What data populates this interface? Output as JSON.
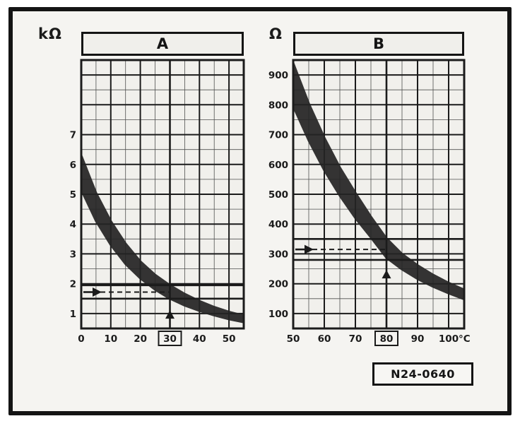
{
  "figure_label": "N24-0640",
  "panels": {
    "a": {
      "title": "A",
      "unit": "kΩ"
    },
    "b": {
      "title": "B",
      "unit": "Ω"
    }
  },
  "colors": {
    "ink": "#1b1b1b",
    "grid_minor": "#4f4f4f",
    "grid_major": "#1b1b1b",
    "band": "#242424",
    "paper": "#f5f4f1",
    "plot_bg": "#f1f0ec"
  },
  "chart_data": [
    {
      "type": "area",
      "title": "A",
      "ylabel": "kΩ",
      "xlabel": "°C",
      "x_unit": "",
      "xlim": [
        0,
        55
      ],
      "ylim": [
        0.5,
        9.5
      ],
      "x_ticks": [
        0,
        10,
        20,
        30,
        40,
        50
      ],
      "y_ticks": [
        1,
        2,
        3,
        4,
        5,
        6,
        7
      ],
      "x_minor_step": 5,
      "y_minor_step": 0.5,
      "x_major_step": 10,
      "y_major_step": 1,
      "grid": true,
      "x": [
        0,
        5,
        10,
        15,
        20,
        25,
        30,
        35,
        40,
        45,
        50,
        55
      ],
      "series": [
        {
          "name": "tolerance-band-upper-kohm",
          "values": [
            6.3,
            5.05,
            4.1,
            3.35,
            2.75,
            2.3,
            1.95,
            1.66,
            1.42,
            1.22,
            1.06,
            0.93
          ]
        },
        {
          "name": "tolerance-band-lower-kohm",
          "values": [
            5.15,
            4.1,
            3.3,
            2.66,
            2.18,
            1.8,
            1.5,
            1.27,
            1.09,
            0.94,
            0.81,
            0.71
          ]
        }
      ],
      "markers": {
        "h_lines": [
          1.5,
          1.95
        ],
        "arrow_y": 1.72,
        "v_line_x": 30,
        "up_arrow_y": 0.9,
        "boxed_x_tick": 30,
        "dashed_guide": true
      }
    },
    {
      "type": "area",
      "title": "B",
      "ylabel": "Ω",
      "xlabel": "°C",
      "x_unit": "°C",
      "xlim": [
        50,
        105
      ],
      "ylim": [
        50,
        950
      ],
      "x_ticks": [
        50,
        60,
        70,
        80,
        90,
        100
      ],
      "y_ticks": [
        100,
        200,
        300,
        400,
        500,
        600,
        700,
        800,
        900
      ],
      "x_minor_step": 5,
      "y_minor_step": 50,
      "x_major_step": 10,
      "y_major_step": 100,
      "grid": true,
      "x": [
        50,
        55,
        60,
        65,
        70,
        75,
        80,
        85,
        90,
        95,
        100,
        105
      ],
      "series": [
        {
          "name": "tolerance-band-upper-ohm",
          "values": [
            940,
            805,
            690,
            590,
            505,
            425,
            352,
            300,
            262,
            230,
            203,
            180
          ]
        },
        {
          "name": "tolerance-band-lower-ohm",
          "values": [
            795,
            680,
            580,
            495,
            420,
            355,
            287,
            248,
            216,
            190,
            168,
            148
          ]
        }
      ],
      "markers": {
        "h_lines": [
          280,
          350
        ],
        "arrow_y": 315,
        "v_line_x": 80,
        "up_arrow_y": 225,
        "boxed_x_tick": 80,
        "dashed_guide": true
      }
    }
  ]
}
